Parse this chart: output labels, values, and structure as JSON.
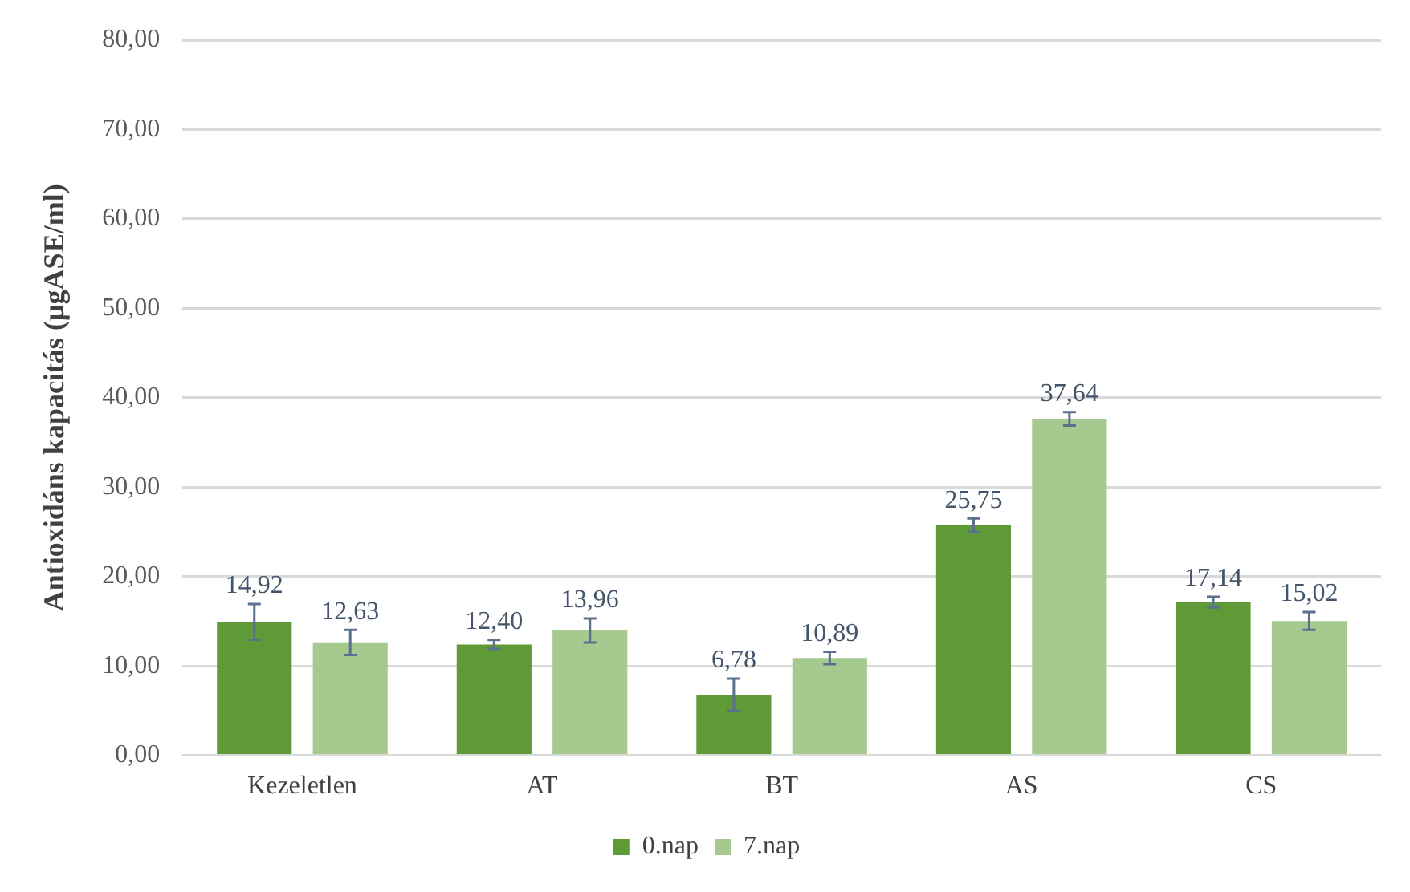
{
  "chart_data": {
    "type": "bar",
    "ylabel": "Antioxidáns kapacitás (µgASE/ml)",
    "categories": [
      "Kezeletlen",
      "AT",
      "BT",
      "AS",
      "CS"
    ],
    "series": [
      {
        "name": "0.nap",
        "color": "#5e9a35",
        "values": [
          14.92,
          12.4,
          6.78,
          25.75,
          17.14
        ],
        "errors": [
          2.0,
          0.5,
          1.8,
          0.75,
          0.6
        ],
        "value_labels": [
          "14,92",
          "12,40",
          "6,78",
          "25,75",
          "17,14"
        ]
      },
      {
        "name": "7.nap",
        "color": "#a5c98e",
        "values": [
          12.63,
          13.96,
          10.89,
          37.64,
          15.02
        ],
        "errors": [
          1.4,
          1.35,
          0.7,
          0.75,
          1.0
        ],
        "value_labels": [
          "12,63",
          "13,96",
          "10,89",
          "37,64",
          "15,02"
        ]
      }
    ],
    "ylim": [
      0,
      80
    ],
    "yticks": [
      {
        "value": 0,
        "label": "0,00"
      },
      {
        "value": 10,
        "label": "10,00"
      },
      {
        "value": 20,
        "label": "20,00"
      },
      {
        "value": 30,
        "label": "30,00"
      },
      {
        "value": 40,
        "label": "40,00"
      },
      {
        "value": 50,
        "label": "50,00"
      },
      {
        "value": 60,
        "label": "60,00"
      },
      {
        "value": 70,
        "label": "70,00"
      },
      {
        "value": 80,
        "label": "80,00"
      }
    ],
    "grid": "y",
    "legend": "bottom"
  }
}
